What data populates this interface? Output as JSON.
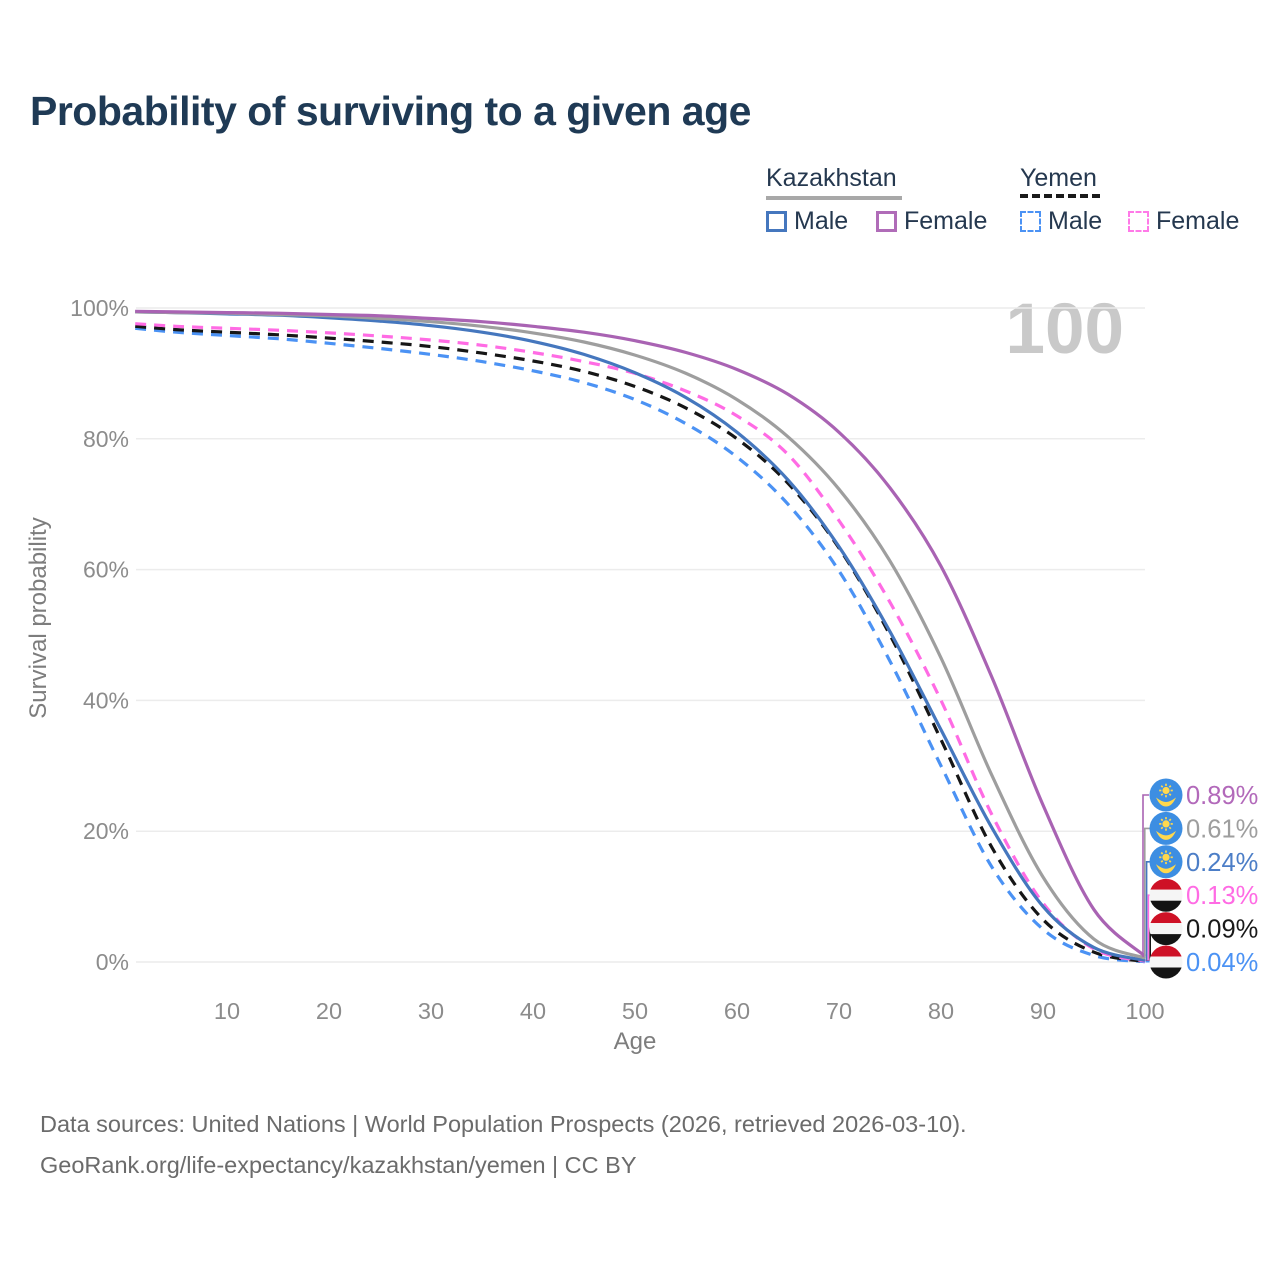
{
  "title": "Probability of surviving to a given age",
  "age_counter": {
    "text": "100"
  },
  "legend": {
    "kazakhstan": {
      "label": "Kazakhstan",
      "line_color": "#a8a8a8",
      "male_label": "Male",
      "male_color": "#4577be",
      "female_label": "Female",
      "female_color": "#b06cb8"
    },
    "yemen": {
      "label": "Yemen",
      "line_color": "#1a1a1a",
      "male_label": "Male",
      "male_color": "#4b92f4",
      "female_label": "Female",
      "female_color": "#ff7ae8"
    }
  },
  "footer": {
    "line1": "Data sources: United Nations | World Population Prospects (2026, retrieved 2026-03-10).",
    "line2": "GeoRank.org/life-expectancy/kazakhstan/yemen | CC BY"
  },
  "chart_data": {
    "type": "line",
    "title": "Probability of surviving to a given age",
    "xlabel": "Age",
    "ylabel": "Survival probability",
    "x_range": [
      0,
      100
    ],
    "y_range": [
      0,
      100
    ],
    "grid": "horizontal",
    "legend_position": "top-right",
    "x_ticks": [
      10,
      20,
      30,
      40,
      50,
      60,
      70,
      80,
      90,
      100
    ],
    "y_ticks": [
      {
        "value": 100,
        "label": "100%"
      },
      {
        "value": 80,
        "label": "80%"
      },
      {
        "value": 60,
        "label": "60%"
      },
      {
        "value": 40,
        "label": "40%"
      },
      {
        "value": 20,
        "label": "20%"
      },
      {
        "value": 0,
        "label": "0%"
      }
    ],
    "ages": [
      1,
      5,
      10,
      15,
      20,
      25,
      30,
      35,
      40,
      45,
      50,
      55,
      60,
      65,
      70,
      75,
      80,
      85,
      90,
      95,
      100
    ],
    "series": [
      {
        "id": "yemen-male",
        "name": "Yemen Male",
        "country": "Yemen",
        "sex": "Male",
        "color": "#4b92f4",
        "label_color": "#4b92f4",
        "dashed": true,
        "flag": "yemen",
        "end_label": "0.04%",
        "values": [
          96.9,
          96.3,
          95.8,
          95.3,
          94.6,
          93.8,
          92.9,
          91.8,
          90.4,
          88.6,
          86.0,
          82.3,
          77.2,
          70.0,
          59.8,
          46.0,
          30.0,
          14.5,
          5.0,
          1.0,
          0.04
        ]
      },
      {
        "id": "yemen-both",
        "name": "Yemen Both sexes",
        "country": "Yemen",
        "sex": "Both sexes",
        "color": "#161616",
        "label_color": "#191919",
        "dashed": true,
        "flag": "yemen",
        "end_label": "0.09%",
        "values": [
          97.2,
          96.7,
          96.3,
          95.9,
          95.4,
          94.8,
          94.1,
          93.1,
          91.9,
          90.3,
          88.0,
          84.7,
          80.0,
          73.2,
          63.3,
          50.0,
          34.0,
          17.5,
          6.5,
          1.5,
          0.09
        ]
      },
      {
        "id": "yemen-female",
        "name": "Yemen Female",
        "country": "Yemen",
        "sex": "Female",
        "color": "#ff6be4",
        "label_color": "#ff6be4",
        "dashed": true,
        "flag": "yemen",
        "end_label": "0.13%",
        "values": [
          97.6,
          97.2,
          96.9,
          96.6,
          96.2,
          95.7,
          95.1,
          94.3,
          93.2,
          91.8,
          90.0,
          87.3,
          83.5,
          77.6,
          67.5,
          55.0,
          40.0,
          22.5,
          9.0,
          2.0,
          0.13
        ]
      },
      {
        "id": "kazakhstan-male",
        "name": "Kazakhstan Male",
        "country": "Kazakhstan",
        "sex": "Male",
        "color": "#4577be",
        "label_color": "#4c7ec7",
        "dashed": false,
        "flag": "kazakhstan",
        "end_label": "0.24%",
        "values": [
          99.4,
          99.3,
          99.1,
          98.9,
          98.5,
          98.0,
          97.3,
          96.3,
          94.9,
          92.9,
          90.1,
          86.3,
          81.0,
          73.7,
          63.5,
          50.5,
          35.5,
          20.5,
          8.5,
          2.2,
          0.24
        ]
      },
      {
        "id": "kazakhstan-both",
        "name": "Kazakhstan Both sexes",
        "country": "Kazakhstan",
        "sex": "Both sexes",
        "color": "#9e9e9e",
        "label_color": "#9e9e9e",
        "dashed": false,
        "flag": "kazakhstan",
        "end_label": "0.61%",
        "values": [
          99.4,
          99.3,
          99.2,
          99.0,
          98.8,
          98.4,
          97.9,
          97.2,
          96.2,
          94.8,
          92.8,
          90.0,
          86.0,
          80.3,
          72.3,
          61.3,
          46.5,
          28.5,
          13.0,
          3.5,
          0.61
        ]
      },
      {
        "id": "kazakhstan-female",
        "name": "Kazakhstan Female",
        "country": "Kazakhstan",
        "sex": "Female",
        "color": "#a963b3",
        "label_color": "#b269ba",
        "dashed": false,
        "flag": "kazakhstan",
        "end_label": "0.89%",
        "values": [
          99.5,
          99.4,
          99.3,
          99.2,
          99.0,
          98.8,
          98.4,
          97.9,
          97.2,
          96.3,
          95.0,
          93.2,
          90.6,
          86.8,
          81.0,
          72.5,
          60.5,
          43.5,
          24.0,
          8.0,
          0.89
        ]
      }
    ]
  }
}
